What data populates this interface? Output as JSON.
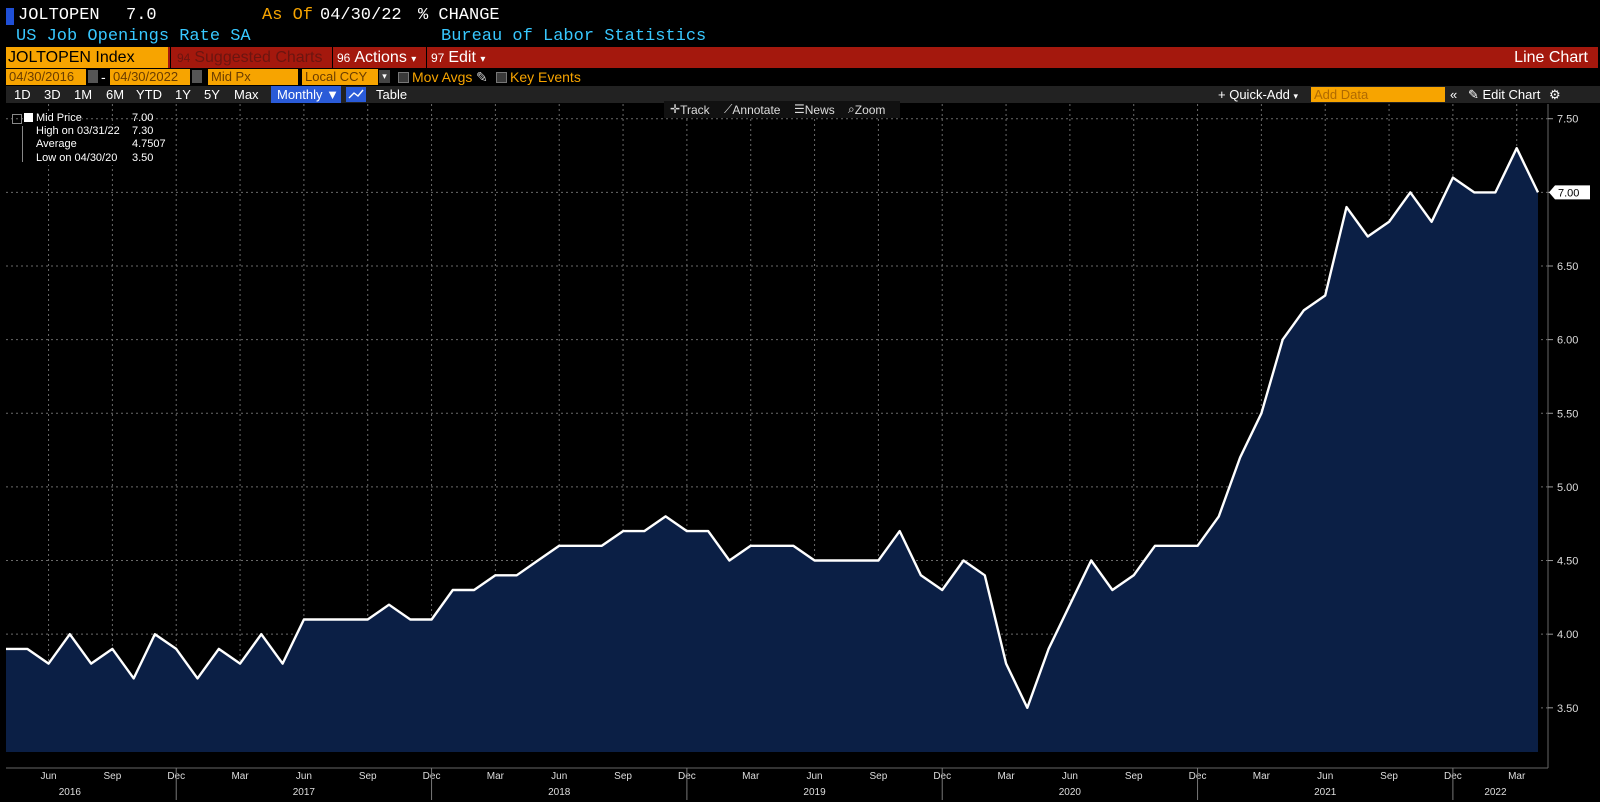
{
  "header": {
    "ticker": "JOLTOPEN",
    "last_value": "7.0",
    "as_of_label": "As Of",
    "as_of_date": "04/30/22",
    "change_label": "% CHANGE",
    "description": "US Job Openings Rate SA",
    "source": "Bureau of Labor Statistics"
  },
  "toolbar": {
    "security": "JOLTOPEN Index",
    "suggested_num": "94",
    "suggested": "Suggested Charts",
    "actions_num": "96",
    "actions": "Actions",
    "edit_num": "97",
    "edit": "Edit",
    "chart_type": "Line Chart"
  },
  "range": {
    "start": "04/30/2016",
    "dash": "-",
    "end": "04/30/2022",
    "field": "Mid Px",
    "currency": "Local CCY",
    "mov_avgs": "Mov Avgs",
    "key_events": "Key Events"
  },
  "periods": [
    "1D",
    "3D",
    "1M",
    "6M",
    "YTD",
    "1Y",
    "5Y",
    "Max"
  ],
  "frequency": "Monthly",
  "table_label": "Table",
  "quick_add": "Quick-Add",
  "add_data_placeholder": "Add Data",
  "edit_chart": "Edit Chart",
  "tools": [
    "Track",
    "Annotate",
    "News",
    "Zoom"
  ],
  "legend": {
    "mid_label": "Mid Price",
    "mid_value": "7.00",
    "high_label": "High on 03/31/22",
    "high_value": "7.30",
    "avg_label": "Average",
    "avg_value": "4.7507",
    "low_label": "Low on 04/30/20",
    "low_value": "3.50"
  },
  "colors": {
    "accent": "#f7a400",
    "bar": "#a4180d",
    "fill": "#0b1f45",
    "line": "#ffffff",
    "title_blue": "#38c8ff"
  },
  "chart_data": {
    "type": "area",
    "title": "",
    "series": [
      {
        "name": "Mid Price",
        "x": [
          "2016-04",
          "2016-05",
          "2016-06",
          "2016-07",
          "2016-08",
          "2016-09",
          "2016-10",
          "2016-11",
          "2016-12",
          "2017-01",
          "2017-02",
          "2017-03",
          "2017-04",
          "2017-05",
          "2017-06",
          "2017-07",
          "2017-08",
          "2017-09",
          "2017-10",
          "2017-11",
          "2017-12",
          "2018-01",
          "2018-02",
          "2018-03",
          "2018-04",
          "2018-05",
          "2018-06",
          "2018-07",
          "2018-08",
          "2018-09",
          "2018-10",
          "2018-11",
          "2018-12",
          "2019-01",
          "2019-02",
          "2019-03",
          "2019-04",
          "2019-05",
          "2019-06",
          "2019-07",
          "2019-08",
          "2019-09",
          "2019-10",
          "2019-11",
          "2019-12",
          "2020-01",
          "2020-02",
          "2020-03",
          "2020-04",
          "2020-05",
          "2020-06",
          "2020-07",
          "2020-08",
          "2020-09",
          "2020-10",
          "2020-11",
          "2020-12",
          "2021-01",
          "2021-02",
          "2021-03",
          "2021-04",
          "2021-05",
          "2021-06",
          "2021-07",
          "2021-08",
          "2021-09",
          "2021-10",
          "2021-11",
          "2021-12",
          "2022-01",
          "2022-02",
          "2022-03",
          "2022-04"
        ],
        "values": [
          3.9,
          3.9,
          3.8,
          4.0,
          3.8,
          3.9,
          3.7,
          4.0,
          3.9,
          3.7,
          3.9,
          3.8,
          4.0,
          3.8,
          4.1,
          4.1,
          4.1,
          4.1,
          4.2,
          4.1,
          4.1,
          4.3,
          4.3,
          4.4,
          4.4,
          4.5,
          4.6,
          4.6,
          4.6,
          4.7,
          4.7,
          4.8,
          4.7,
          4.7,
          4.5,
          4.6,
          4.6,
          4.6,
          4.5,
          4.5,
          4.5,
          4.5,
          4.7,
          4.4,
          4.3,
          4.5,
          4.4,
          3.8,
          3.5,
          3.9,
          4.2,
          4.5,
          4.3,
          4.4,
          4.6,
          4.6,
          4.6,
          4.8,
          5.2,
          5.5,
          6.0,
          6.2,
          6.3,
          6.9,
          6.7,
          6.8,
          7.0,
          6.8,
          7.1,
          7.0,
          7.0,
          7.3,
          7.0
        ]
      }
    ],
    "y_ticks": [
      "3.50",
      "4.00",
      "4.50",
      "5.00",
      "5.50",
      "6.00",
      "6.50",
      "7.00",
      "7.50"
    ],
    "ylim": [
      3.2,
      7.6
    ],
    "x_month_ticks": [
      {
        "label": "Jun",
        "date": "2016-06"
      },
      {
        "label": "Sep",
        "date": "2016-09"
      },
      {
        "label": "Dec",
        "date": "2016-12"
      },
      {
        "label": "Mar",
        "date": "2017-03"
      },
      {
        "label": "Jun",
        "date": "2017-06"
      },
      {
        "label": "Sep",
        "date": "2017-09"
      },
      {
        "label": "Dec",
        "date": "2017-12"
      },
      {
        "label": "Mar",
        "date": "2018-03"
      },
      {
        "label": "Jun",
        "date": "2018-06"
      },
      {
        "label": "Sep",
        "date": "2018-09"
      },
      {
        "label": "Dec",
        "date": "2018-12"
      },
      {
        "label": "Mar",
        "date": "2019-03"
      },
      {
        "label": "Jun",
        "date": "2019-06"
      },
      {
        "label": "Sep",
        "date": "2019-09"
      },
      {
        "label": "Dec",
        "date": "2019-12"
      },
      {
        "label": "Mar",
        "date": "2020-03"
      },
      {
        "label": "Jun",
        "date": "2020-06"
      },
      {
        "label": "Sep",
        "date": "2020-09"
      },
      {
        "label": "Dec",
        "date": "2020-12"
      },
      {
        "label": "Mar",
        "date": "2021-03"
      },
      {
        "label": "Jun",
        "date": "2021-06"
      },
      {
        "label": "Sep",
        "date": "2021-09"
      },
      {
        "label": "Dec",
        "date": "2021-12"
      },
      {
        "label": "Mar",
        "date": "2022-03"
      }
    ],
    "x_year_labels": [
      {
        "label": "2016",
        "date": "2016-07"
      },
      {
        "label": "2017",
        "date": "2017-06"
      },
      {
        "label": "2018",
        "date": "2018-06"
      },
      {
        "label": "2019",
        "date": "2019-06"
      },
      {
        "label": "2020",
        "date": "2020-06"
      },
      {
        "label": "2021",
        "date": "2021-06"
      },
      {
        "label": "2022",
        "date": "2022-02"
      }
    ],
    "last_value_label": "7.00",
    "grid": true
  }
}
